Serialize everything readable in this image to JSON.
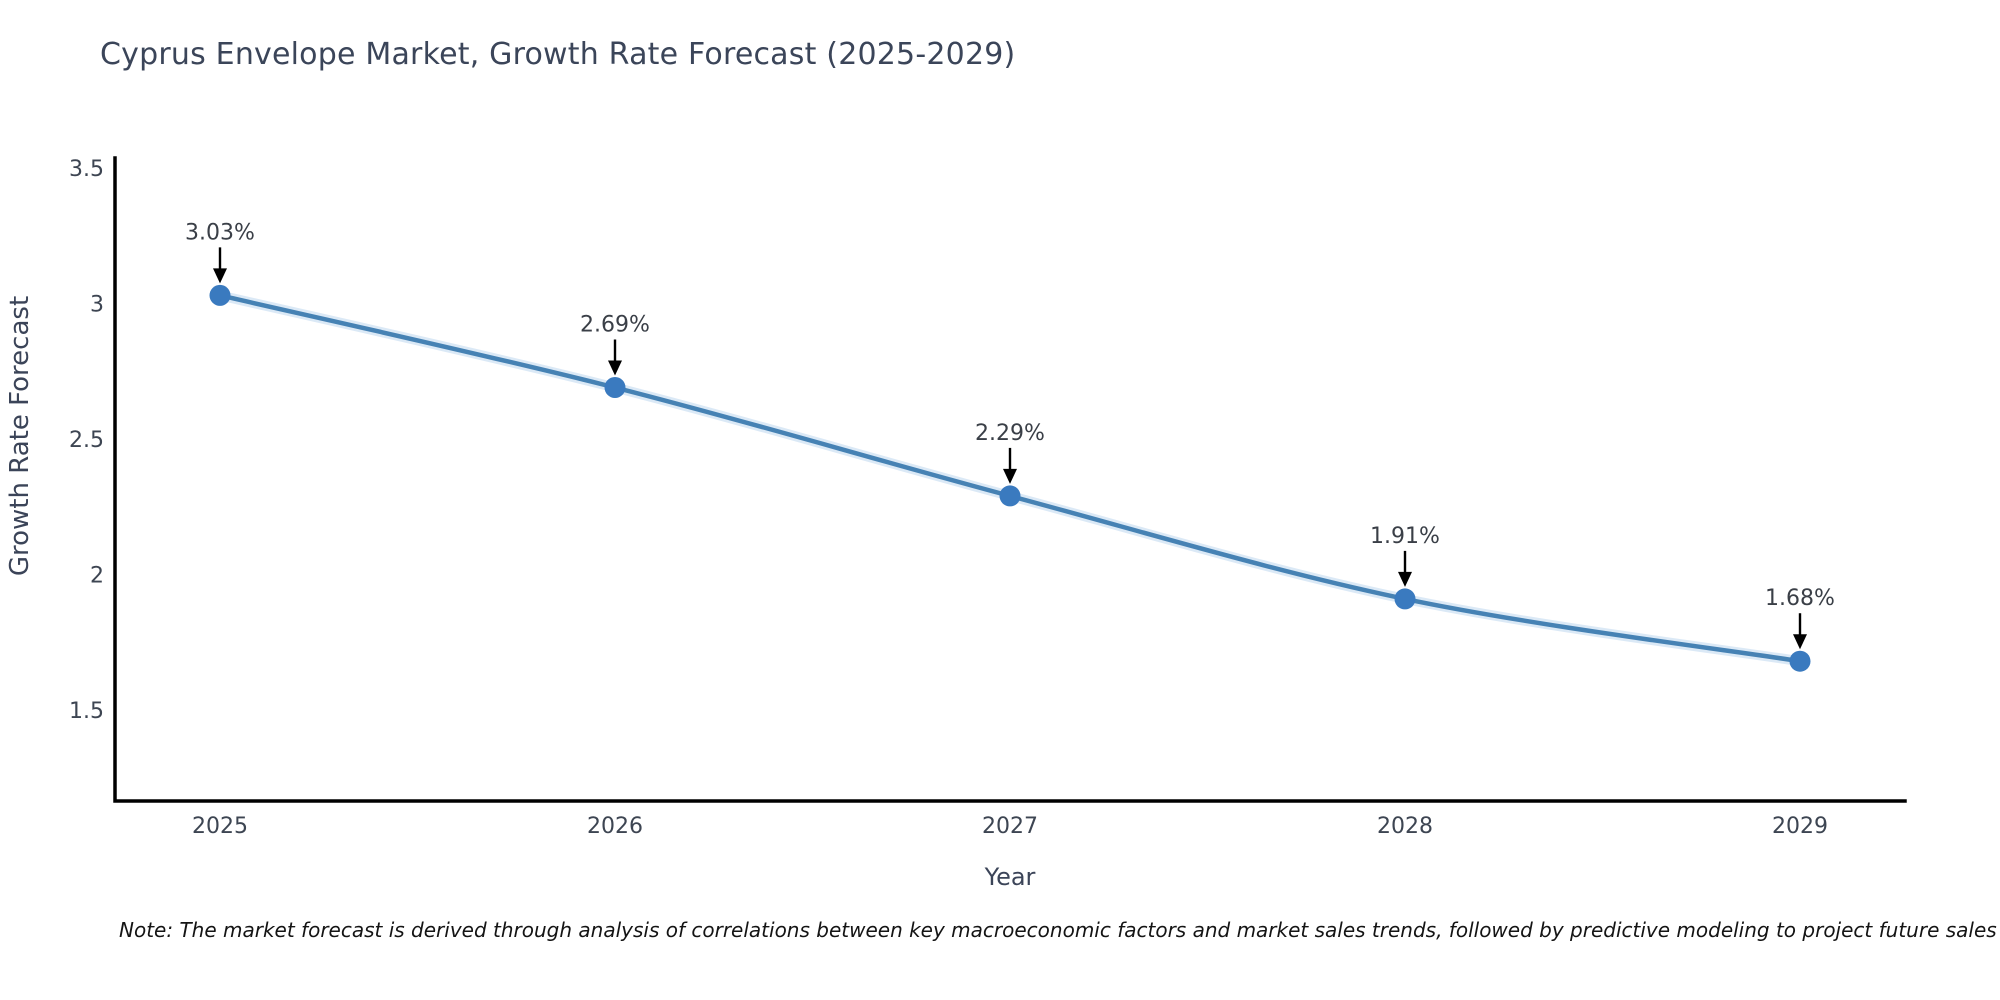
{
  "title": "Cyprus Envelope Market, Growth Rate Forecast (2025-2029)",
  "note": "Note: The market forecast is derived through analysis of correlations between key macroeconomic factors and market sales trends, followed by predictive modeling to project future sales",
  "chart_data": {
    "type": "line",
    "title": "Cyprus Envelope Market, Growth Rate Forecast (2025-2029)",
    "x": [
      2025,
      2026,
      2027,
      2028,
      2029
    ],
    "categories": [
      "2025",
      "2026",
      "2027",
      "2028",
      "2029"
    ],
    "series": [
      {
        "name": "Growth Rate Forecast",
        "values": [
          3.03,
          2.69,
          2.29,
          1.91,
          1.68
        ]
      }
    ],
    "point_labels": [
      "3.03%",
      "2.69%",
      "2.29%",
      "1.91%",
      "1.68%"
    ],
    "xlabel": "Year",
    "ylabel": "Growth Rate Forecast",
    "yticks": [
      3.5,
      3,
      2.5,
      2,
      1.5
    ],
    "ylim": [
      1.16,
      3.54
    ],
    "grid": false,
    "legend": "none",
    "colors": {
      "line": "#4682b4",
      "line_glow": "#bdd7ee",
      "marker": "#3a7abf",
      "axis": "#000000",
      "tick_text": "#3d4552",
      "axis_label_text": "#3b4458",
      "annotation_text": "#3a3f47",
      "arrow": "#000000",
      "title_text": "#3b4559",
      "note_text": "#141414"
    }
  }
}
